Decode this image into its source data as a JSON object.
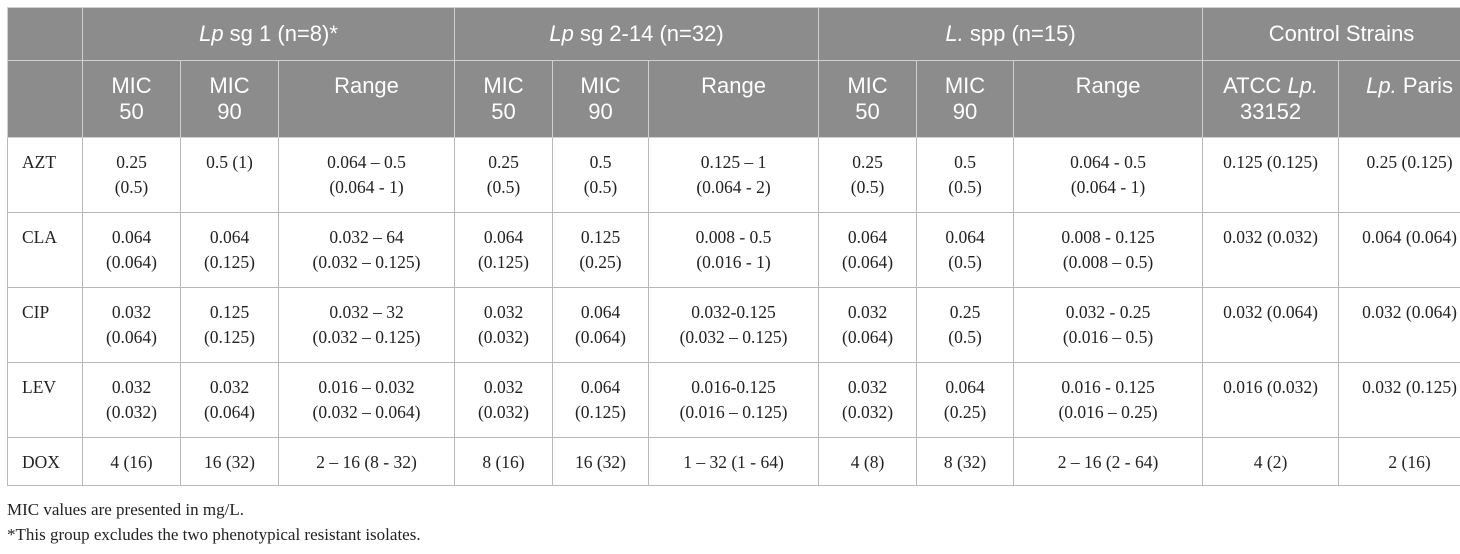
{
  "table": {
    "group_headers": [
      {
        "italic": "Lp",
        "rest": " sg 1 (n=8)*"
      },
      {
        "italic": "Lp",
        "rest": " sg 2-14 (n=32)"
      },
      {
        "italic": "L.",
        "rest": " spp (n=15)"
      },
      {
        "italic": "",
        "rest": "Control Strains"
      }
    ],
    "sub_headers": [
      {
        "text": "MIC\n50"
      },
      {
        "text": "MIC\n90"
      },
      {
        "text": "Range"
      },
      {
        "text": "MIC\n50"
      },
      {
        "text": "MIC\n90"
      },
      {
        "text": "Range"
      },
      {
        "text": "MIC\n50"
      },
      {
        "text": "MIC\n90"
      },
      {
        "text": "Range"
      },
      {
        "pre": "ATCC ",
        "italic": "Lp.",
        "post": "\n33152"
      },
      {
        "pre": "",
        "italic": "Lp.",
        "post": " Paris"
      }
    ],
    "rows": [
      {
        "drug": "AZT",
        "cells": [
          "0.25\n(0.5)",
          "0.5 (1)",
          "0.064 – 0.5\n(0.064 - 1)",
          "0.25\n(0.5)",
          "0.5\n(0.5)",
          "0.125 – 1\n(0.064 - 2)",
          "0.25\n(0.5)",
          "0.5\n(0.5)",
          "0.064 - 0.5\n(0.064 - 1)",
          "0.125 (0.125)",
          "0.25 (0.125)"
        ]
      },
      {
        "drug": "CLA",
        "cells": [
          "0.064\n(0.064)",
          "0.064\n(0.125)",
          "0.032 – 64\n(0.032 – 0.125)",
          "0.064\n(0.125)",
          "0.125\n(0.25)",
          "0.008 - 0.5\n(0.016 - 1)",
          "0.064\n(0.064)",
          "0.064\n(0.5)",
          "0.008 - 0.125\n(0.008 – 0.5)",
          "0.032 (0.032)",
          "0.064 (0.064)"
        ]
      },
      {
        "drug": "CIP",
        "cells": [
          "0.032\n(0.064)",
          "0.125\n(0.125)",
          "0.032 – 32\n(0.032 – 0.125)",
          "0.032\n(0.032)",
          "0.064\n(0.064)",
          "0.032-0.125\n(0.032 – 0.125)",
          "0.032\n(0.064)",
          "0.25\n(0.5)",
          "0.032 - 0.25\n(0.016 – 0.5)",
          "0.032 (0.064)",
          "0.032 (0.064)"
        ]
      },
      {
        "drug": "LEV",
        "cells": [
          "0.032\n(0.032)",
          "0.032\n(0.064)",
          "0.016 – 0.032\n(0.032 – 0.064)",
          "0.032\n(0.032)",
          "0.064\n(0.125)",
          "0.016-0.125\n(0.016 – 0.125)",
          "0.032\n(0.032)",
          "0.064\n(0.25)",
          "0.016 - 0.125\n(0.016 – 0.25)",
          "0.016 (0.032)",
          "0.032 (0.125)"
        ]
      },
      {
        "drug": "DOX",
        "cells": [
          "4 (16)",
          "16 (32)",
          "2 – 16 (8 - 32)",
          "8 (16)",
          "16 (32)",
          "1 – 32 (1 - 64)",
          "4 (8)",
          "8 (32)",
          "2 – 16 (2 - 64)",
          "4 (2)",
          "2 (16)"
        ]
      }
    ]
  },
  "notes": [
    "MIC values are presented in mg/L.",
    "*This group excludes the two phenotypical resistant isolates."
  ]
}
